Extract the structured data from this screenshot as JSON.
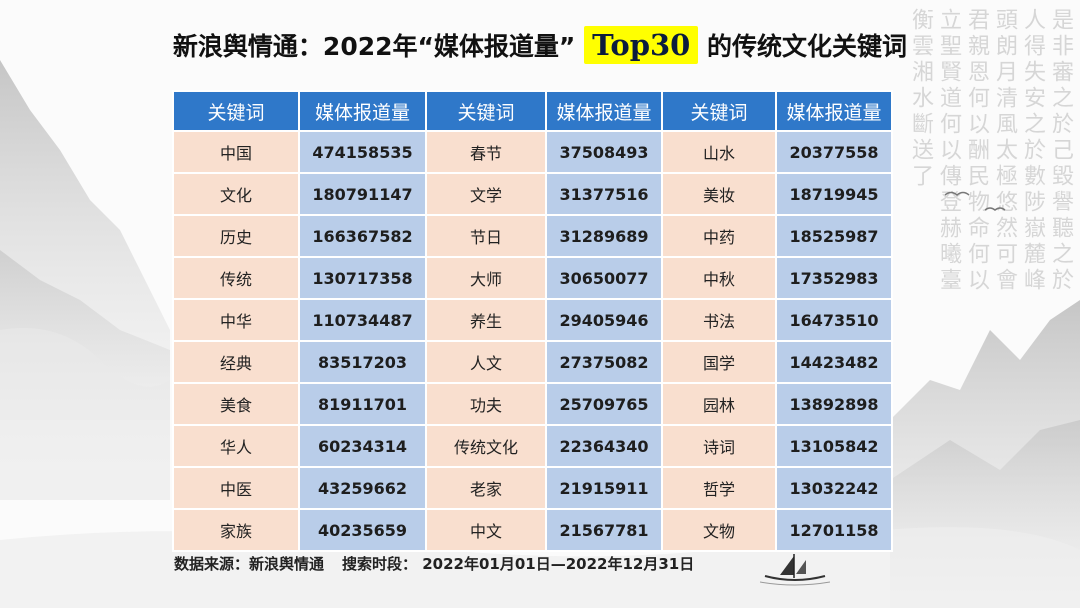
{
  "title": {
    "prefix": "新浪舆情通：2022年“媒体报道量”",
    "highlight": "Top30",
    "suffix": "的传统文化关键词"
  },
  "table": {
    "headers": [
      "关键词",
      "媒体报道量",
      "关键词",
      "媒体报道量",
      "关键词",
      "媒体报道量"
    ],
    "rows": [
      [
        "中国",
        "474158535",
        "春节",
        "37508493",
        "山水",
        "20377558"
      ],
      [
        "文化",
        "180791147",
        "文学",
        "31377516",
        "美妆",
        "18719945"
      ],
      [
        "历史",
        "166367582",
        "节日",
        "31289689",
        "中药",
        "18525987"
      ],
      [
        "传统",
        "130717358",
        "大师",
        "30650077",
        "中秋",
        "17352983"
      ],
      [
        "中华",
        "110734487",
        "养生",
        "29405946",
        "书法",
        "16473510"
      ],
      [
        "经典",
        "83517203",
        "人文",
        "27375082",
        "国学",
        "14423482"
      ],
      [
        "美食",
        "81911701",
        "功夫",
        "25709765",
        "园林",
        "13892898"
      ],
      [
        "华人",
        "60234314",
        "传统文化",
        "22364340",
        "诗词",
        "13105842"
      ],
      [
        "中医",
        "43259662",
        "老家",
        "21915911",
        "哲学",
        "13032242"
      ],
      [
        "家族",
        "40235659",
        "中文",
        "21567781",
        "文物",
        "12701158"
      ]
    ]
  },
  "footer": {
    "source": "数据来源：新浪舆情通",
    "period": "搜索时段：  2022年01月01日—2022年12月31日"
  },
  "decor": {
    "calligraphy": "是非審之於己毀譽聽之於人得失安之於數陟嶽麓峰頭朗月清風太極悠然可會君親恩何以酬民物命何以立聖賢道何以傳登赫曦臺衡雲湘水斷送了",
    "colors": {
      "header_blue": "#2f78c9",
      "keyword_peach": "#f9dfcf",
      "value_blue": "#b9cde9",
      "highlight_yellow": "#ffff00"
    }
  }
}
